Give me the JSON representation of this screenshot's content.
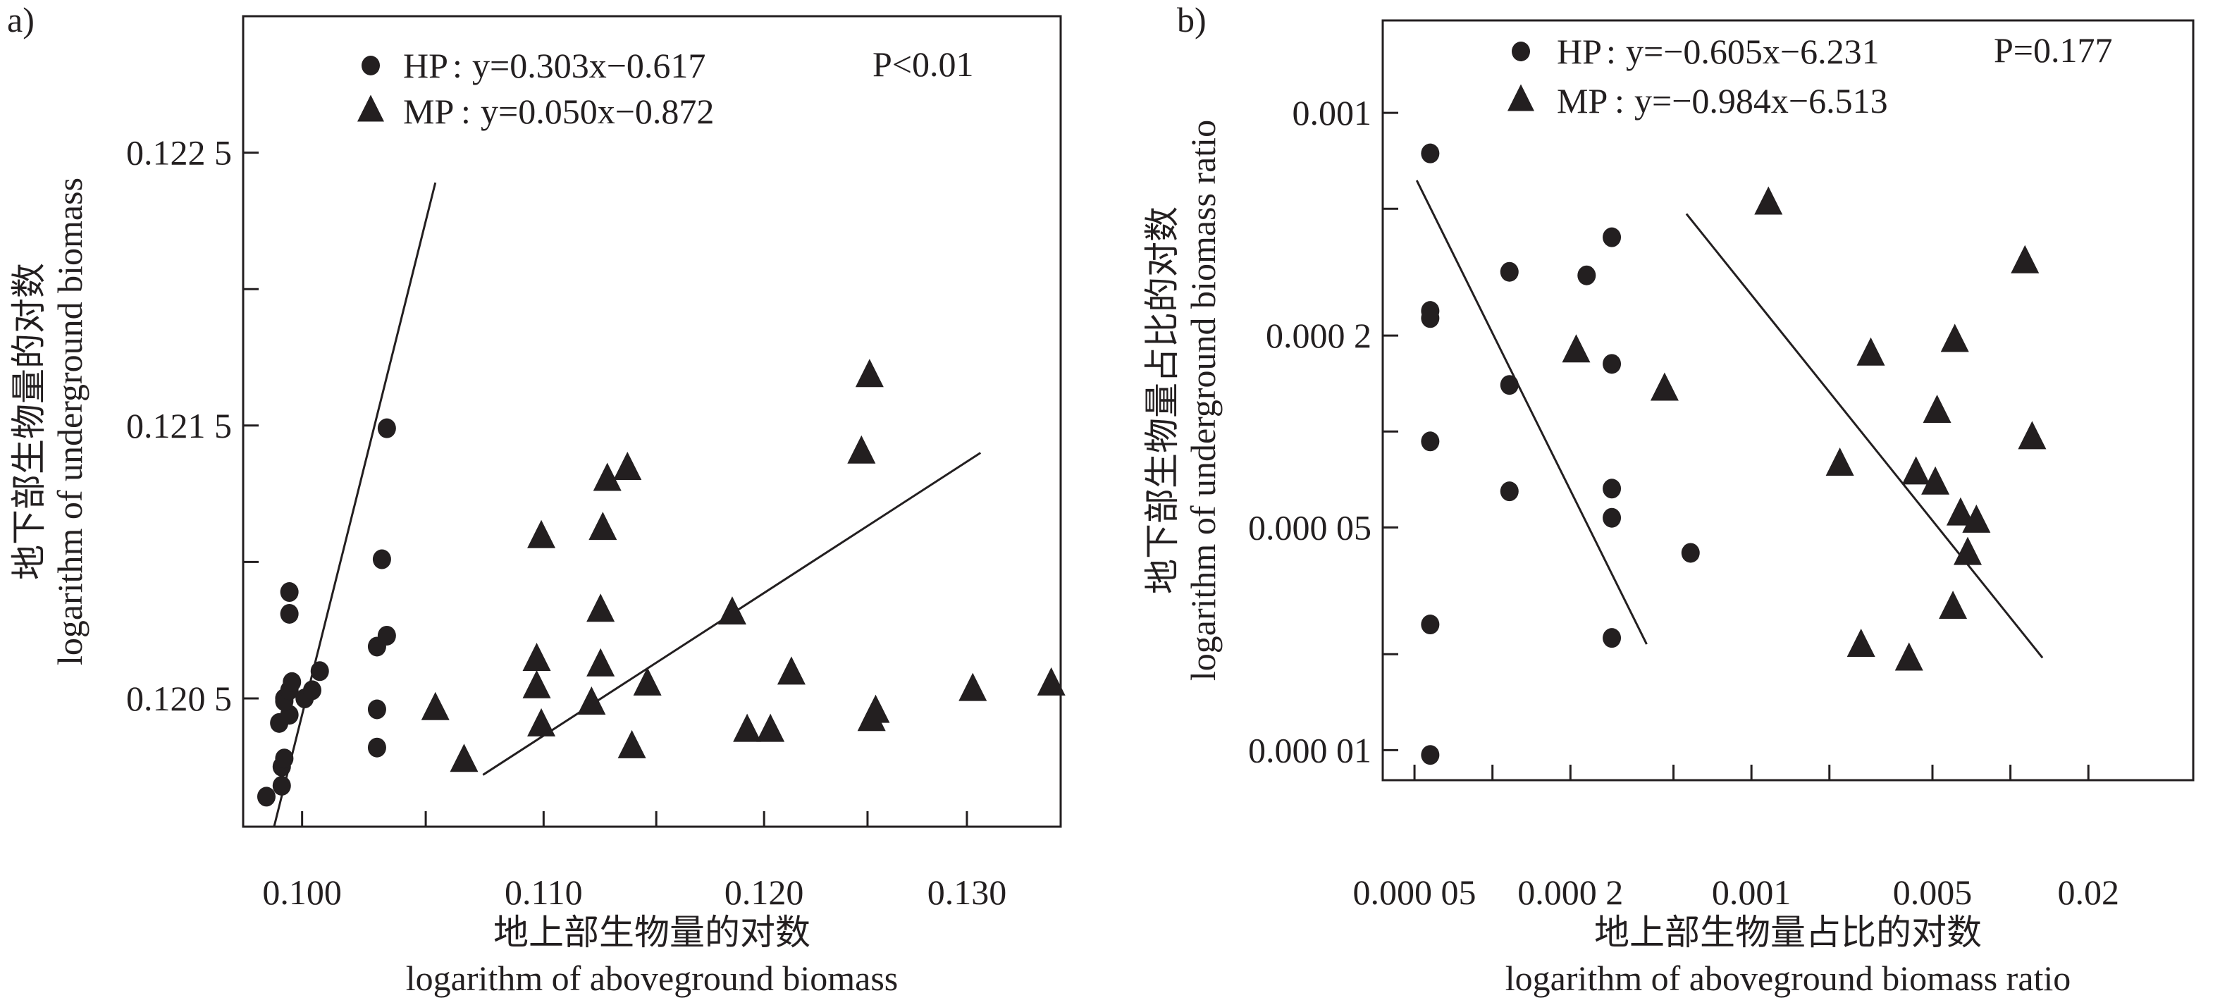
{
  "chart_data": [
    {
      "type": "scatter",
      "panel_label": "a)",
      "xlabel_cn": "地上部生物量的对数",
      "xlabel": "logarithm of aboveground biomass",
      "ylabel_cn": "地下部生物量的对数",
      "ylabel": "logarithm of underground biomass",
      "xscale": "log",
      "yscale": "linear",
      "xlim": [
        0.0977,
        0.1349
      ],
      "ylim": [
        0.12003,
        0.123
      ],
      "xticks": [
        {
          "v": 0.1,
          "label": "0.100"
        },
        {
          "v": 0.105,
          "label": ""
        },
        {
          "v": 0.11,
          "label": "0.110"
        },
        {
          "v": 0.115,
          "label": ""
        },
        {
          "v": 0.12,
          "label": "0.120"
        },
        {
          "v": 0.125,
          "label": ""
        },
        {
          "v": 0.13,
          "label": "0.130"
        }
      ],
      "yticks": [
        {
          "v": 0.1205,
          "label": "0.120 5"
        },
        {
          "v": 0.121,
          "label": ""
        },
        {
          "v": 0.1215,
          "label": "0.121 5"
        },
        {
          "v": 0.122,
          "label": ""
        },
        {
          "v": 0.1225,
          "label": "0.122 5"
        }
      ],
      "annotation": "P<0.01",
      "legend_placement": "top-left",
      "series": [
        {
          "name": "HP",
          "marker": "circle",
          "equation": "y=0.303x−0.617",
          "points": [
            [
              0.0986,
              0.12014
            ],
            [
              0.0992,
              0.12018
            ],
            [
              0.0992,
              0.12025
            ],
            [
              0.0993,
              0.12028
            ],
            [
              0.0991,
              0.12041
            ],
            [
              0.0995,
              0.12044
            ],
            [
              0.0993,
              0.12049
            ],
            [
              0.0993,
              0.1205
            ],
            [
              0.0995,
              0.12053
            ],
            [
              0.0996,
              0.12056
            ],
            [
              0.1001,
              0.1205
            ],
            [
              0.1004,
              0.12053
            ],
            [
              0.1007,
              0.1206
            ],
            [
              0.0995,
              0.12081
            ],
            [
              0.0995,
              0.12089
            ],
            [
              0.103,
              0.12032
            ],
            [
              0.103,
              0.12046
            ],
            [
              0.103,
              0.12069
            ],
            [
              0.1034,
              0.12073
            ],
            [
              0.1032,
              0.12101
            ],
            [
              0.1034,
              0.12149
            ]
          ],
          "fit_line": [
            [
              0.0989,
              0.12003
            ],
            [
              0.1054,
              0.12239
            ]
          ]
        },
        {
          "name": "MP",
          "marker": "triangle",
          "equation": "y=0.050x−0.872",
          "points": [
            [
              0.1054,
              0.12046
            ],
            [
              0.1066,
              0.12027
            ],
            [
              0.1099,
              0.12109
            ],
            [
              0.1097,
              0.12064
            ],
            [
              0.1097,
              0.12054
            ],
            [
              0.1099,
              0.1204
            ],
            [
              0.1121,
              0.12048
            ],
            [
              0.1126,
              0.12112
            ],
            [
              0.1128,
              0.1213
            ],
            [
              0.1137,
              0.12134
            ],
            [
              0.1125,
              0.12082
            ],
            [
              0.1125,
              0.12062
            ],
            [
              0.1139,
              0.12032
            ],
            [
              0.1146,
              0.12055
            ],
            [
              0.1185,
              0.12081
            ],
            [
              0.1192,
              0.12038
            ],
            [
              0.1203,
              0.12038
            ],
            [
              0.1213,
              0.12059
            ],
            [
              0.1251,
              0.12168
            ],
            [
              0.1247,
              0.1214
            ],
            [
              0.1254,
              0.12045
            ],
            [
              0.1252,
              0.12042
            ],
            [
              0.1303,
              0.12053
            ],
            [
              0.1344,
              0.12055
            ]
          ],
          "fit_line": [
            [
              0.1074,
              0.12022
            ],
            [
              0.1307,
              0.1214
            ]
          ]
        }
      ]
    },
    {
      "type": "scatter",
      "panel_label": "b)",
      "xlabel_cn": "地上部生物量占比的对数",
      "xlabel": "logarithm of aboveground biomass ratio",
      "ylabel_cn": "地下部生物量占比的对数",
      "ylabel": "logarithm of underground biomass ratio",
      "xscale": "log",
      "yscale": "log",
      "xlim": [
        3.77e-05,
        0.0508
      ],
      "ylim": [
        8.05e-06,
        0.00195
      ],
      "xticks": [
        {
          "v": 5e-05,
          "label": "0.000 05"
        },
        {
          "v": 0.0001,
          "label": ""
        },
        {
          "v": 0.0002,
          "label": "0.000 2"
        },
        {
          "v": 0.0005,
          "label": ""
        },
        {
          "v": 0.001,
          "label": "0.001"
        },
        {
          "v": 0.002,
          "label": ""
        },
        {
          "v": 0.005,
          "label": "0.005"
        },
        {
          "v": 0.01,
          "label": ""
        },
        {
          "v": 0.02,
          "label": "0.02"
        }
      ],
      "yticks": [
        {
          "v": 1e-05,
          "label": "0.000 01"
        },
        {
          "v": 2e-05,
          "label": ""
        },
        {
          "v": 5e-05,
          "label": "0.000 05"
        },
        {
          "v": 0.0001,
          "label": ""
        },
        {
          "v": 0.0002,
          "label": "0.000 2"
        },
        {
          "v": 0.0005,
          "label": ""
        },
        {
          "v": 0.001,
          "label": "0.001"
        }
      ],
      "annotation": "P=0.177",
      "legend_placement": "top-left",
      "series": [
        {
          "name": "HP",
          "marker": "circle",
          "equation": "y=−0.605x−6.231",
          "points": [
            [
              5.75e-05,
              0.000746
            ],
            [
              5.75e-05,
              0.000239
            ],
            [
              5.75e-05,
              0.000227
            ],
            [
              5.75e-05,
              9.31e-05
            ],
            [
              5.75e-05,
              2.48e-05
            ],
            [
              5.75e-05,
              9.66e-06
            ],
            [
              0.0001163,
              0.000317
            ],
            [
              0.0001163,
              0.00014
            ],
            [
              0.0001163,
              6.49e-05
            ],
            [
              0.000231,
              0.000309
            ],
            [
              0.000289,
              0.000407
            ],
            [
              0.000289,
              0.000163
            ],
            [
              0.000289,
              6.62e-05
            ],
            [
              0.000289,
              5.36e-05
            ],
            [
              0.000289,
              2.25e-05
            ],
            [
              0.000582,
              4.16e-05
            ]
          ],
          "fit_line": [
            [
              5.1e-05,
              0.000614
            ],
            [
              0.000394,
              2.15e-05
            ]
          ]
        },
        {
          "name": "MP",
          "marker": "triangle",
          "equation": "y=−0.984x−6.513",
          "points": [
            [
              0.0002105,
              0.000178
            ],
            [
              0.000462,
              0.000135
            ],
            [
              0.001163,
              0.000518
            ],
            [
              0.002195,
              7.85e-05
            ],
            [
              0.00289,
              0.000174
            ],
            [
              0.00432,
              7.37e-05
            ],
            [
              0.00513,
              6.85e-05
            ],
            [
              0.00521,
              0.000115
            ],
            [
              0.0061,
              0.000192
            ],
            [
              0.00642,
              5.48e-05
            ],
            [
              0.00739,
              5.2e-05
            ],
            [
              0.00684,
              4.12e-05
            ],
            [
              0.006,
              2.79e-05
            ],
            [
              0.00265,
              2.12e-05
            ],
            [
              0.00406,
              1.92e-05
            ],
            [
              0.01138,
              0.000339
            ],
            [
              0.01213,
              9.51e-05
            ]
          ],
          "fit_line": [
            [
              0.000561,
              0.000482
            ],
            [
              0.0133,
              1.95e-05
            ]
          ]
        }
      ]
    }
  ]
}
